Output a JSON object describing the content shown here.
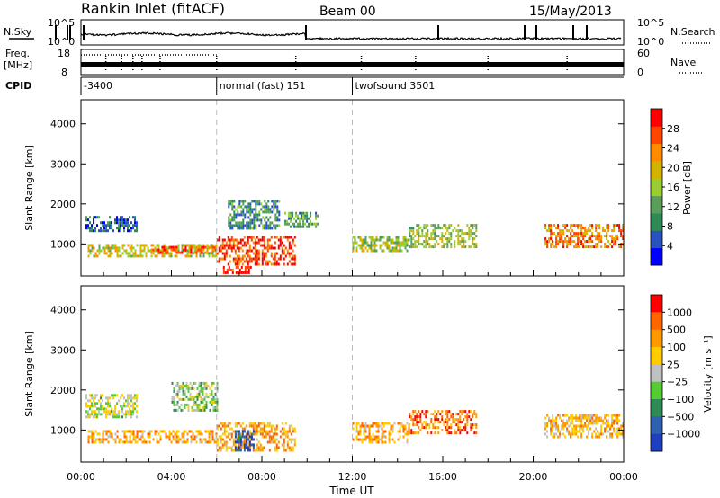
{
  "header": {
    "station": "Rankin Inlet (fitACF)",
    "beam": "Beam 00",
    "date": "15/May/2013"
  },
  "noise_panel": {
    "left_label": "N.Sky",
    "right_label": "N.Search",
    "left_ticks": [
      "10^5",
      "10^0"
    ],
    "right_ticks": [
      "10^5",
      "10^0"
    ]
  },
  "freq_panel": {
    "left_label_top": "Freq.",
    "left_label_bottom": "[MHz]",
    "right_label": "Nave",
    "left_ticks": [
      "18",
      "8"
    ],
    "right_ticks": [
      "60",
      "0"
    ]
  },
  "cpid_panel": {
    "label": "CPID",
    "segments": [
      {
        "text": "-3400",
        "start_hour": 0,
        "end_hour": 6
      },
      {
        "text": "normal (fast) 151",
        "start_hour": 6,
        "end_hour": 12
      },
      {
        "text": "twofsound 3501",
        "start_hour": 12,
        "end_hour": 24
      }
    ]
  },
  "colors": {
    "power_scale": [
      "#0000ff",
      "#2a52be",
      "#2e8b57",
      "#5a9e5a",
      "#9acd32",
      "#d4b200",
      "#ff8c00",
      "#ff4500",
      "#ff0000"
    ],
    "velocity_scale": [
      "#1f3fbf",
      "#3060b0",
      "#2e8b57",
      "#55cc33",
      "#c0c0c0",
      "#ffcc00",
      "#ff9900",
      "#ff6600",
      "#ff0000"
    ]
  },
  "chart_data": [
    {
      "type": "heatmap",
      "name_ref": "power",
      "ylabel": "Slant Range [km]",
      "xlabel": "Time UT",
      "x_ticks": [
        "00:00",
        "04:00",
        "08:00",
        "12:00",
        "16:00",
        "20:00",
        "00:00"
      ],
      "y_ticks": [
        1000,
        2000,
        3000,
        4000
      ],
      "xlim": [
        0,
        24
      ],
      "ylim": [
        200,
        4600
      ],
      "colorbar": {
        "label": "Power [dB]",
        "ticks": [
          4,
          8,
          12,
          16,
          20,
          24,
          28
        ],
        "range": [
          0,
          32
        ]
      },
      "regions": [
        {
          "t0": 0.3,
          "t1": 6.0,
          "r0": 700,
          "r1": 1000,
          "level": 0.55
        },
        {
          "t0": 3.0,
          "t1": 6.0,
          "r0": 750,
          "r1": 950,
          "level": 0.8
        },
        {
          "t0": 0.2,
          "t1": 2.5,
          "r0": 1300,
          "r1": 1700,
          "level": 0.2
        },
        {
          "t0": 6.0,
          "t1": 9.5,
          "r0": 500,
          "r1": 1200,
          "level": 0.85
        },
        {
          "t0": 6.2,
          "t1": 7.5,
          "r0": 250,
          "r1": 450,
          "level": 0.9
        },
        {
          "t0": 6.5,
          "t1": 8.8,
          "r0": 1400,
          "r1": 2100,
          "level": 0.3
        },
        {
          "t0": 9.0,
          "t1": 10.5,
          "r0": 1400,
          "r1": 1800,
          "level": 0.35
        },
        {
          "t0": 12.0,
          "t1": 14.5,
          "r0": 800,
          "r1": 1200,
          "level": 0.5
        },
        {
          "t0": 14.5,
          "t1": 17.5,
          "r0": 900,
          "r1": 1500,
          "level": 0.5
        },
        {
          "t0": 20.5,
          "t1": 24.0,
          "r0": 900,
          "r1": 1500,
          "level": 0.75
        }
      ]
    },
    {
      "type": "heatmap",
      "name_ref": "velocity",
      "ylabel": "Slant Range [km]",
      "xlabel": "Time UT",
      "x_ticks": [
        "00:00",
        "04:00",
        "08:00",
        "12:00",
        "16:00",
        "20:00",
        "00:00"
      ],
      "y_ticks": [
        1000,
        2000,
        3000,
        4000
      ],
      "xlim": [
        0,
        24
      ],
      "ylim": [
        200,
        4600
      ],
      "colorbar": {
        "label": "Velocity [m s⁻¹]",
        "ticks": [
          "1000",
          "500",
          "100",
          "25",
          "−25",
          "−100",
          "−500",
          "−1000"
        ]
      },
      "regions": [
        {
          "t0": 0.3,
          "t1": 6.0,
          "r0": 700,
          "r1": 1000,
          "level": 0.7
        },
        {
          "t0": 0.2,
          "t1": 2.5,
          "r0": 1300,
          "r1": 1900,
          "level": 0.5
        },
        {
          "t0": 4.0,
          "t1": 6.0,
          "r0": 1500,
          "r1": 2200,
          "level": 0.45
        },
        {
          "t0": 6.0,
          "t1": 9.5,
          "r0": 500,
          "r1": 1200,
          "level": 0.7
        },
        {
          "t0": 6.8,
          "t1": 7.6,
          "r0": 500,
          "r1": 1000,
          "level": 0.1
        },
        {
          "t0": 12.0,
          "t1": 14.5,
          "r0": 700,
          "r1": 1200,
          "level": 0.7
        },
        {
          "t0": 14.5,
          "t1": 17.5,
          "r0": 900,
          "r1": 1500,
          "level": 0.8
        },
        {
          "t0": 20.5,
          "t1": 24.0,
          "r0": 800,
          "r1": 1400,
          "level": 0.65
        }
      ]
    }
  ]
}
